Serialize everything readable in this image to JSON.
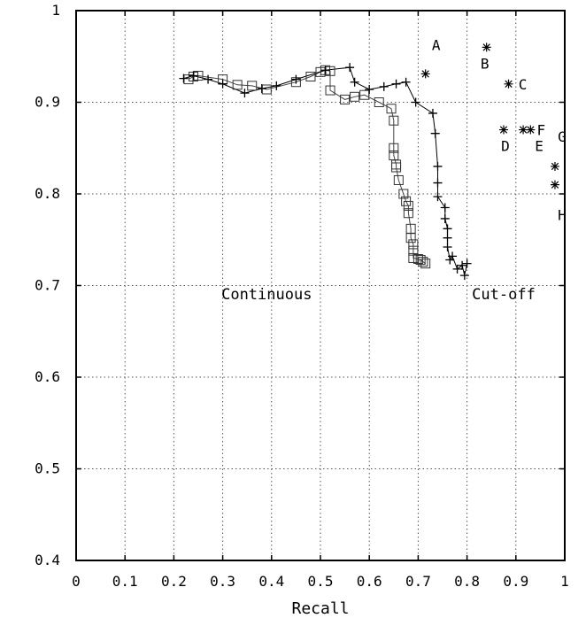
{
  "chart_data": {
    "type": "scatter",
    "xlabel": "Recall",
    "ylabel": "",
    "xlim": [
      0,
      1
    ],
    "ylim": [
      0.4,
      1
    ],
    "x_ticks": [
      "0",
      "0.1",
      "0.2",
      "0.3",
      "0.4",
      "0.5",
      "0.6",
      "0.7",
      "0.8",
      "0.9",
      "1"
    ],
    "y_ticks": [
      "0.4",
      "0.5",
      "0.6",
      "0.7",
      "0.8",
      "0.9",
      "1"
    ],
    "grid": "dotted",
    "annotations": [
      "Continuous",
      "Cut-off"
    ],
    "series": [
      {
        "name": "Continuous",
        "marker": "square",
        "points": [
          [
            0.23,
            0.925
          ],
          [
            0.24,
            0.928
          ],
          [
            0.25,
            0.929
          ],
          [
            0.3,
            0.925
          ],
          [
            0.33,
            0.919
          ],
          [
            0.36,
            0.918
          ],
          [
            0.39,
            0.914
          ],
          [
            0.45,
            0.922
          ],
          [
            0.48,
            0.928
          ],
          [
            0.5,
            0.933
          ],
          [
            0.51,
            0.935
          ],
          [
            0.52,
            0.934
          ],
          [
            0.52,
            0.913
          ],
          [
            0.55,
            0.903
          ],
          [
            0.57,
            0.906
          ],
          [
            0.59,
            0.908
          ],
          [
            0.62,
            0.9
          ],
          [
            0.645,
            0.893
          ],
          [
            0.65,
            0.88
          ],
          [
            0.65,
            0.85
          ],
          [
            0.65,
            0.842
          ],
          [
            0.655,
            0.832
          ],
          [
            0.655,
            0.829
          ],
          [
            0.66,
            0.815
          ],
          [
            0.67,
            0.8
          ],
          [
            0.675,
            0.792
          ],
          [
            0.68,
            0.787
          ],
          [
            0.68,
            0.779
          ],
          [
            0.685,
            0.762
          ],
          [
            0.685,
            0.752
          ],
          [
            0.69,
            0.745
          ],
          [
            0.69,
            0.738
          ],
          [
            0.69,
            0.73
          ],
          [
            0.7,
            0.729
          ],
          [
            0.71,
            0.726
          ],
          [
            0.715,
            0.724
          ],
          [
            0.705,
            0.728
          ]
        ]
      },
      {
        "name": "Cut-off",
        "marker": "plus",
        "points": [
          [
            0.22,
            0.926
          ],
          [
            0.24,
            0.929
          ],
          [
            0.27,
            0.925
          ],
          [
            0.3,
            0.92
          ],
          [
            0.345,
            0.91
          ],
          [
            0.38,
            0.915
          ],
          [
            0.41,
            0.918
          ],
          [
            0.45,
            0.925
          ],
          [
            0.51,
            0.935
          ],
          [
            0.56,
            0.938
          ],
          [
            0.57,
            0.922
          ],
          [
            0.6,
            0.914
          ],
          [
            0.63,
            0.917
          ],
          [
            0.655,
            0.92
          ],
          [
            0.675,
            0.922
          ],
          [
            0.695,
            0.9
          ],
          [
            0.73,
            0.888
          ],
          [
            0.735,
            0.866
          ],
          [
            0.74,
            0.83
          ],
          [
            0.74,
            0.812
          ],
          [
            0.74,
            0.797
          ],
          [
            0.755,
            0.785
          ],
          [
            0.755,
            0.773
          ],
          [
            0.76,
            0.762
          ],
          [
            0.76,
            0.752
          ],
          [
            0.76,
            0.742
          ],
          [
            0.765,
            0.728
          ],
          [
            0.77,
            0.732
          ],
          [
            0.78,
            0.718
          ],
          [
            0.79,
            0.722
          ],
          [
            0.795,
            0.711
          ],
          [
            0.8,
            0.724
          ]
        ]
      },
      {
        "name": "",
        "marker": "asterisk",
        "points": [
          {
            "label": "A",
            "x": 0.715,
            "y": 0.931
          },
          {
            "label": "B",
            "x": 0.84,
            "y": 0.96
          },
          {
            "label": "C",
            "x": 0.885,
            "y": 0.92
          },
          {
            "label": "D",
            "x": 0.875,
            "y": 0.87
          },
          {
            "label": "E",
            "x": 0.915,
            "y": 0.87
          },
          {
            "label": "F",
            "x": 0.93,
            "y": 0.87
          },
          {
            "label": "G",
            "x": 0.98,
            "y": 0.83
          },
          {
            "label": "H",
            "x": 0.98,
            "y": 0.81
          }
        ]
      }
    ]
  }
}
